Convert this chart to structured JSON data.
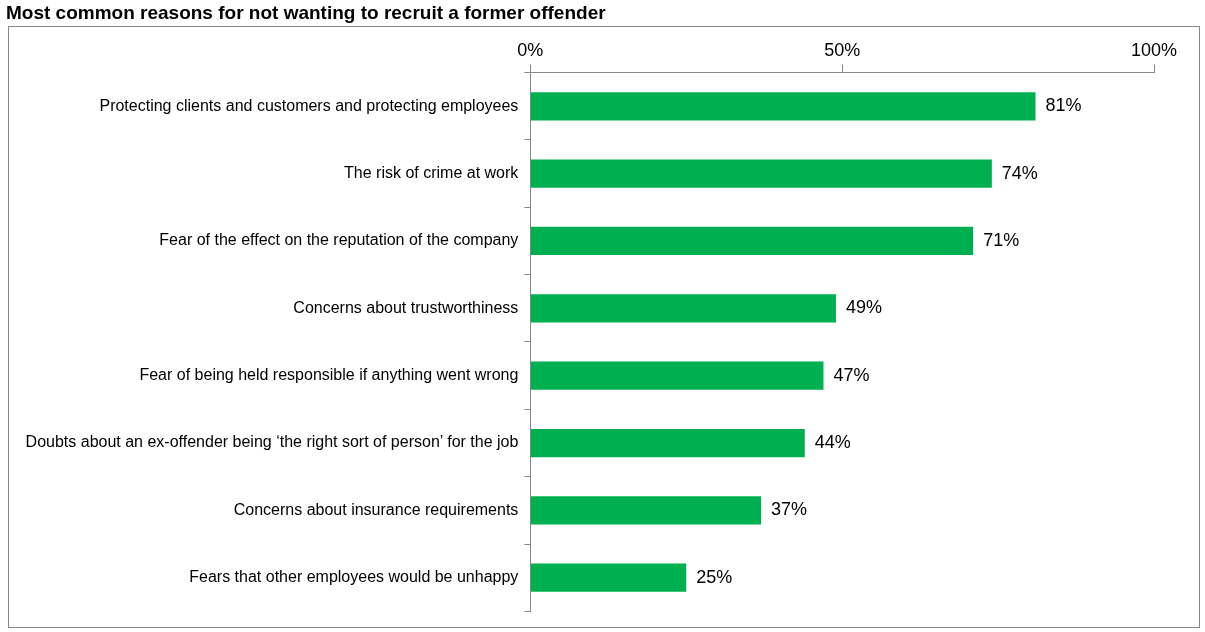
{
  "chart_data": {
    "type": "bar",
    "orientation": "horizontal",
    "title": "Most common reasons for not wanting to recruit a former offender",
    "categories": [
      "Protecting clients and customers and protecting employees",
      "The risk of crime at work",
      "Fear of the effect on the reputation of the company",
      "Concerns about trustworthiness",
      "Fear of being held responsible if anything went wrong",
      "Doubts about an ex-offender being ‘the right sort of person’ for the job",
      "Concerns about insurance requirements",
      "Fears that other employees would be unhappy"
    ],
    "values": [
      81,
      74,
      71,
      49,
      47,
      44,
      37,
      25
    ],
    "value_labels": [
      "81%",
      "74%",
      "71%",
      "49%",
      "47%",
      "44%",
      "37%",
      "25%"
    ],
    "color": "#00b050",
    "xlim": [
      0,
      100
    ],
    "xticks": [
      {
        "value": 0,
        "label": "0%"
      },
      {
        "value": 50,
        "label": "50%"
      },
      {
        "value": 100,
        "label": "100%"
      }
    ],
    "grid": false,
    "legend": false
  }
}
